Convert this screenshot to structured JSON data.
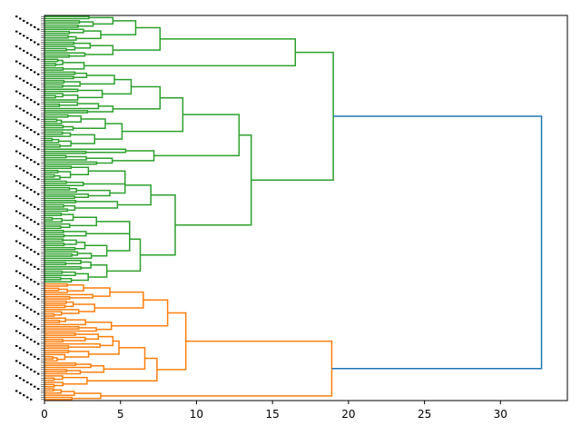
{
  "chart_data": {
    "type": "dendrogram",
    "orientation": "left",
    "title": "",
    "xlabel": "",
    "ylabel": "",
    "xlim": [
      0,
      34.4
    ],
    "xticks": [
      0,
      5,
      10,
      15,
      20,
      25,
      30
    ],
    "xtick_labels": [
      "0",
      "5",
      "10",
      "15",
      "20",
      "25",
      "30"
    ],
    "leaf_count": 180,
    "colors": {
      "cluster_1": "#2ca02c",
      "cluster_2": "#ff7f0e",
      "above_threshold": "#1f77b4"
    },
    "root_merge": {
      "distance": 32.7,
      "left_child_distance": 19.0,
      "right_child_distance": 18.9
    },
    "cluster_1": {
      "leaf_range": [
        0,
        125
      ],
      "top_merges": [
        {
          "distance": 19.0,
          "children": [
            16.5,
            13.6
          ]
        },
        {
          "distance": 16.5,
          "children": [
            7.6,
            2.6
          ]
        },
        {
          "distance": 13.6,
          "children": [
            12.8,
            8.6
          ]
        },
        {
          "distance": 12.8,
          "children": [
            9.1,
            7.2
          ]
        },
        {
          "distance": 9.1,
          "children": [
            7.6,
            5.1
          ]
        },
        {
          "distance": 8.6,
          "children": [
            7.0,
            6.3
          ]
        },
        {
          "distance": 7.6,
          "children": [
            6.0,
            4.5
          ]
        },
        {
          "distance": 7.0,
          "children": [
            5.3,
            4.8
          ]
        },
        {
          "distance": 6.3,
          "children": [
            5.6,
            4.1
          ]
        },
        {
          "distance": 6.0,
          "children": [
            4.5,
            3.7
          ]
        },
        {
          "distance": 5.7,
          "children": [
            4.6,
            3.8
          ]
        },
        {
          "distance": 5.1,
          "children": [
            4.0,
            3.3
          ]
        }
      ]
    },
    "cluster_2": {
      "leaf_range": [
        125,
        180
      ],
      "top_merges": [
        {
          "distance": 18.9,
          "children": [
            9.3,
            3.7
          ]
        },
        {
          "distance": 9.3,
          "children": [
            8.1,
            7.4
          ]
        },
        {
          "distance": 8.1,
          "children": [
            6.5,
            4.4
          ]
        },
        {
          "distance": 7.4,
          "children": [
            6.6,
            2.8
          ]
        },
        {
          "distance": 6.6,
          "children": [
            4.9,
            3.9
          ]
        },
        {
          "distance": 6.5,
          "children": [
            4.3,
            3.3
          ]
        },
        {
          "distance": 4.9,
          "children": [
            4.5,
            2.9
          ]
        }
      ]
    }
  }
}
